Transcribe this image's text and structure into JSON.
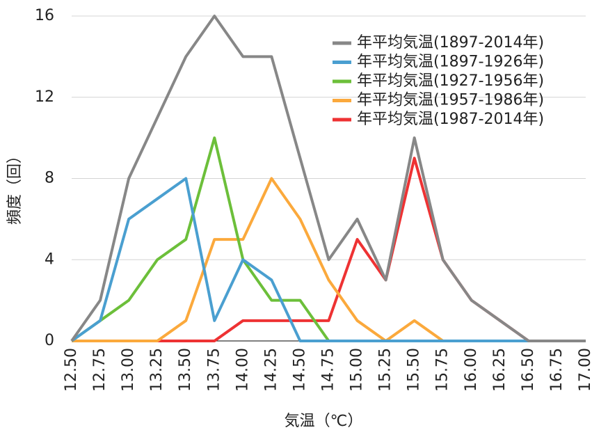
{
  "chart_data": {
    "type": "line",
    "x_label": "気温（℃）",
    "y_label": "頻度（回）",
    "categories": [
      "12.50",
      "12.75",
      "13.00",
      "13.25",
      "13.50",
      "13.75",
      "14.00",
      "14.25",
      "14.50",
      "14.75",
      "15.00",
      "15.25",
      "15.50",
      "15.75",
      "16.00",
      "16.25",
      "16.50",
      "16.75",
      "17.00"
    ],
    "series": [
      {
        "name": "年平均気温(1897-2014年)",
        "color": "#878787",
        "values": [
          0,
          2,
          8,
          11,
          14,
          16,
          14,
          14,
          9,
          4,
          6,
          3,
          10,
          4,
          2,
          1,
          0,
          0,
          0
        ]
      },
      {
        "name": "年平均気温(1897-1926年)",
        "color": "#4a9fd0",
        "values": [
          0,
          1,
          6,
          7,
          8,
          1,
          4,
          3,
          0,
          0,
          0,
          0,
          0,
          0,
          0,
          0,
          0,
          0,
          0
        ]
      },
      {
        "name": "年平均気温(1927-1956年)",
        "color": "#6cbf3a",
        "values": [
          0,
          1,
          2,
          4,
          5,
          10,
          4,
          2,
          2,
          0,
          0,
          0,
          0,
          0,
          0,
          0,
          0,
          0,
          0
        ]
      },
      {
        "name": "年平均気温(1957-1986年)",
        "color": "#fba93c",
        "values": [
          0,
          0,
          0,
          0,
          1,
          5,
          5,
          8,
          6,
          3,
          1,
          0,
          1,
          0,
          0,
          0,
          0,
          0,
          0
        ]
      },
      {
        "name": "年平均気温(1987-2014年)",
        "color": "#ee3233",
        "values": [
          0,
          0,
          0,
          0,
          0,
          0,
          1,
          1,
          1,
          1,
          5,
          3,
          9,
          4,
          2,
          1,
          0,
          0,
          0
        ]
      }
    ],
    "ylim": [
      0,
      16
    ],
    "yticks": [
      0,
      4,
      8,
      12,
      16
    ],
    "grid": true,
    "legend": "top-right"
  }
}
